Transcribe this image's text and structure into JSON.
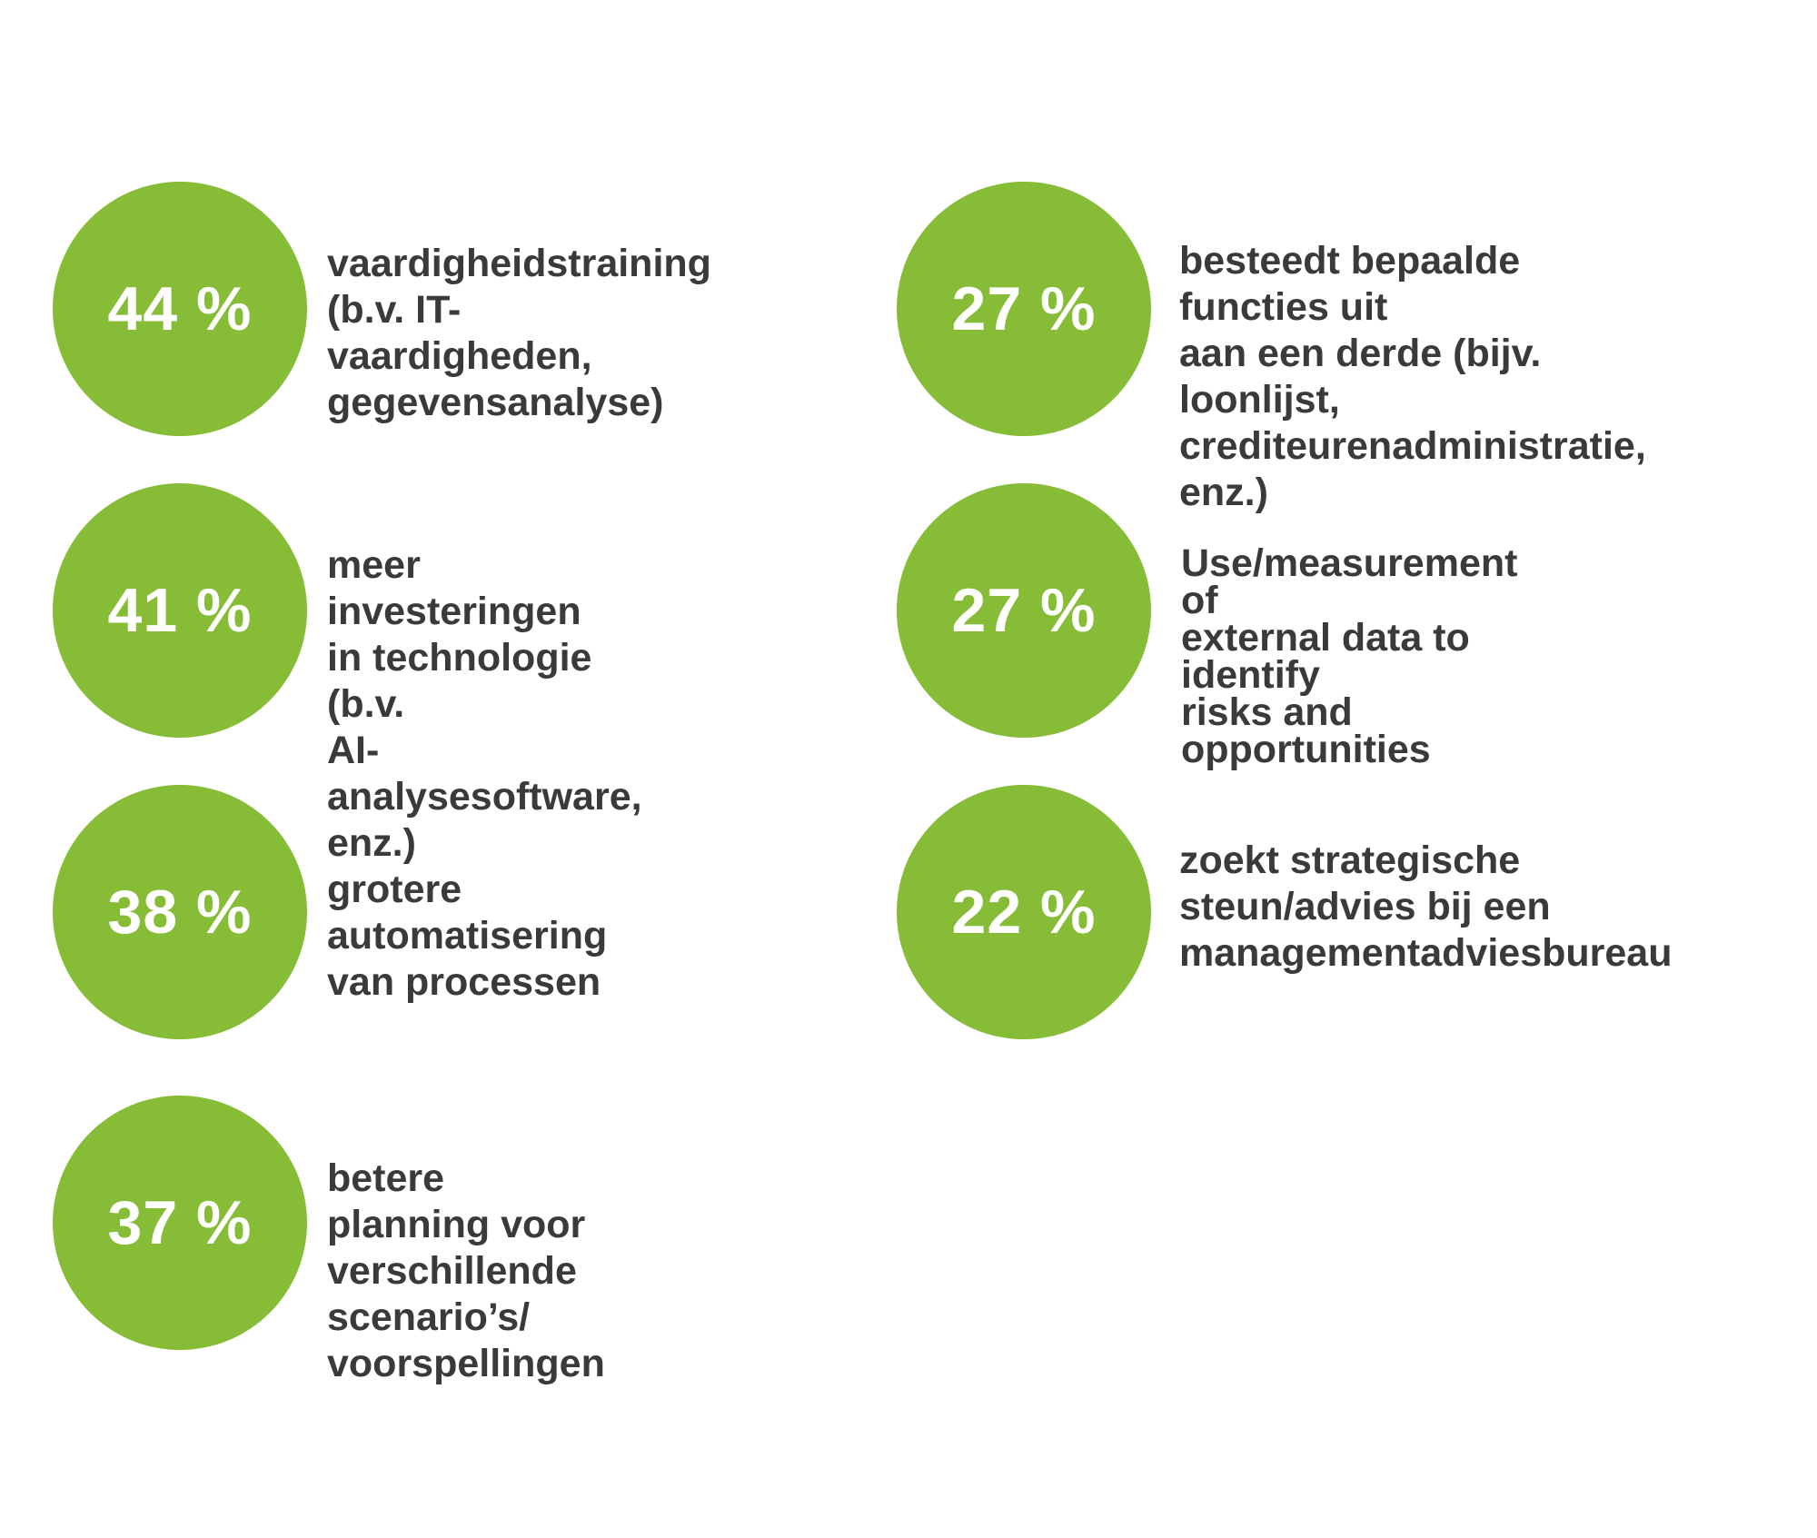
{
  "colors": {
    "circle": "#86bc36",
    "circle_text": "#ffffff",
    "label_text": "#3a3a3a",
    "background": "#ffffff"
  },
  "chart_data": {
    "type": "bar",
    "title": "",
    "categories": [
      "vaardigheidstraining (b.v. IT-vaardigheden, gegevensanalyse)",
      "meer investeringen in technologie (b.v. AI-analysesoftware, enz.)",
      "grotere automatisering van processen",
      "betere planning voor verschillende scenario’s/ voorspellingen",
      "besteedt bepaalde functies uit aan een derde (bijv. loonlijst, crediteurenadministratie, enz.)",
      "Use/measurement of external data to identify risks and opportunities",
      "zoekt strategische steun/advies bij een managementadviesbureau"
    ],
    "values": [
      44,
      41,
      38,
      37,
      27,
      27,
      22
    ],
    "unit": "%",
    "stats": [
      {
        "value_label": "44 %",
        "label": "vaardigheidstraining\n(b.v. IT-vaardigheden,\ngegevensanalyse)"
      },
      {
        "value_label": "41 %",
        "label": "meer investeringen\nin technologie (b.v.\nAI-analysesoftware, enz.)"
      },
      {
        "value_label": "38 %",
        "label": "grotere automatisering\nvan processen"
      },
      {
        "value_label": "37 %",
        "label": "betere planning voor\nverschillende scenario’s/\nvoorspellingen"
      },
      {
        "value_label": "27 %",
        "label": "besteedt bepaalde functies uit\naan een derde (bijv. loonlijst,\ncrediteurenadministratie, enz.)"
      },
      {
        "value_label": "27 %",
        "label": "Use/measurement of\nexternal data to identify\nrisks and opportunities"
      },
      {
        "value_label": "22 %",
        "label": "zoekt strategische\nsteun/advies bij een\nmanagementadviesbureau"
      }
    ]
  }
}
